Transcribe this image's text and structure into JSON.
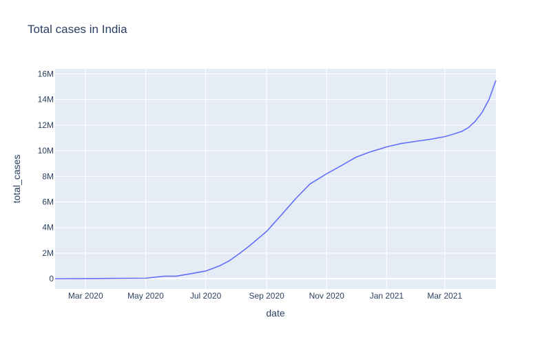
{
  "chart_data": {
    "type": "line",
    "title": "Total cases in India",
    "xlabel": "date",
    "ylabel": "total_cases",
    "xlim": [
      "2020-01-30",
      "2021-04-22"
    ],
    "ylim": [
      -800000,
      16400000
    ],
    "x_ticks": [
      {
        "date": "2020-03-01",
        "label": "Mar 2020"
      },
      {
        "date": "2020-05-01",
        "label": "May 2020"
      },
      {
        "date": "2020-07-01",
        "label": "Jul 2020"
      },
      {
        "date": "2020-09-01",
        "label": "Sep 2020"
      },
      {
        "date": "2020-11-01",
        "label": "Nov 2020"
      },
      {
        "date": "2021-01-01",
        "label": "Jan 2021"
      },
      {
        "date": "2021-03-01",
        "label": "Mar 2021"
      }
    ],
    "y_ticks": [
      {
        "value": 0,
        "label": "0"
      },
      {
        "value": 2000000,
        "label": "2M"
      },
      {
        "value": 4000000,
        "label": "4M"
      },
      {
        "value": 6000000,
        "label": "6M"
      },
      {
        "value": 8000000,
        "label": "8M"
      },
      {
        "value": 10000000,
        "label": "10M"
      },
      {
        "value": 12000000,
        "label": "12M"
      },
      {
        "value": 14000000,
        "label": "14M"
      },
      {
        "value": 16000000,
        "label": "16M"
      }
    ],
    "grid": true,
    "colors": {
      "line": "#636efa",
      "plot_bg": "#e5ecf6",
      "grid": "#ffffff",
      "text": "#2a3f5f"
    },
    "series": [
      {
        "x": [
          "2020-01-30",
          "2020-03-01",
          "2020-04-01",
          "2020-05-01",
          "2020-05-20",
          "2020-06-01",
          "2020-06-15",
          "2020-07-01",
          "2020-07-15",
          "2020-07-25",
          "2020-08-05",
          "2020-08-15",
          "2020-09-01",
          "2020-09-15",
          "2020-10-01",
          "2020-10-15",
          "2020-11-01",
          "2020-11-15",
          "2020-12-01",
          "2020-12-15",
          "2021-01-01",
          "2021-01-15",
          "2021-02-01",
          "2021-02-15",
          "2021-03-01",
          "2021-03-10",
          "2021-03-18",
          "2021-03-25",
          "2021-04-01",
          "2021-04-08",
          "2021-04-15",
          "2021-04-22"
        ],
        "y": [
          0,
          10000,
          30000,
          40000,
          200000,
          200000,
          380000,
          600000,
          1000000,
          1400000,
          2000000,
          2600000,
          3700000,
          4900000,
          6300000,
          7400000,
          8200000,
          8800000,
          9500000,
          9900000,
          10300000,
          10550000,
          10750000,
          10900000,
          11100000,
          11300000,
          11500000,
          11800000,
          12300000,
          13000000,
          14000000,
          15500000
        ]
      }
    ]
  }
}
